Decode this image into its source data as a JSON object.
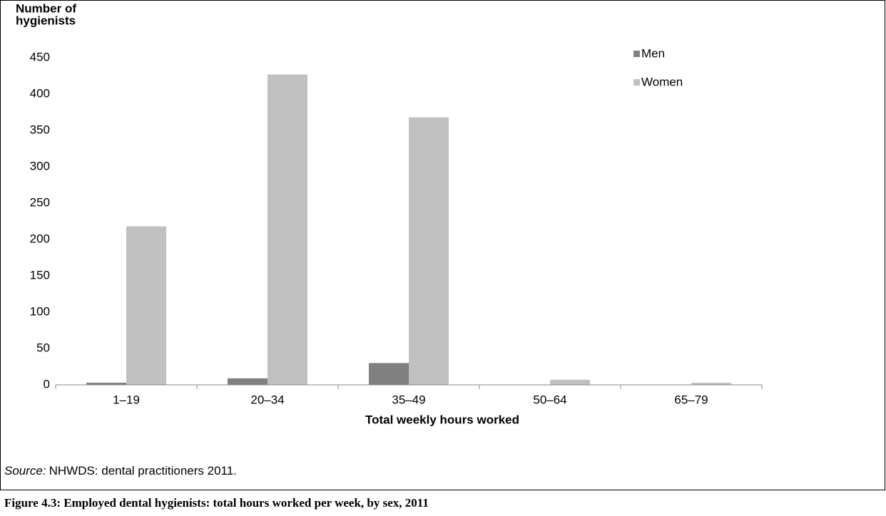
{
  "chart_data": {
    "type": "bar",
    "y_label": [
      "Number of",
      "hygienists"
    ],
    "x_label": "Total weekly hours worked",
    "categories": [
      "1–19",
      "20–34",
      "35–49",
      "50–64",
      "65–79"
    ],
    "series": [
      {
        "name": "Men",
        "color": "#808080",
        "values": [
          3,
          9,
          30,
          0,
          0
        ]
      },
      {
        "name": "Women",
        "color": "#c0c0c0",
        "values": [
          218,
          427,
          368,
          7,
          3
        ]
      }
    ],
    "ylim": [
      0,
      450
    ],
    "yticks": [
      0,
      50,
      100,
      150,
      200,
      250,
      300,
      350,
      400,
      450
    ],
    "grid": false,
    "legend": "upper right"
  },
  "source_label": "Source:",
  "source": "NHWDS: dental practitioners 2011.",
  "caption": "Figure 4.3: Employed dental hygienists: total hours worked per week, by sex, 2011"
}
